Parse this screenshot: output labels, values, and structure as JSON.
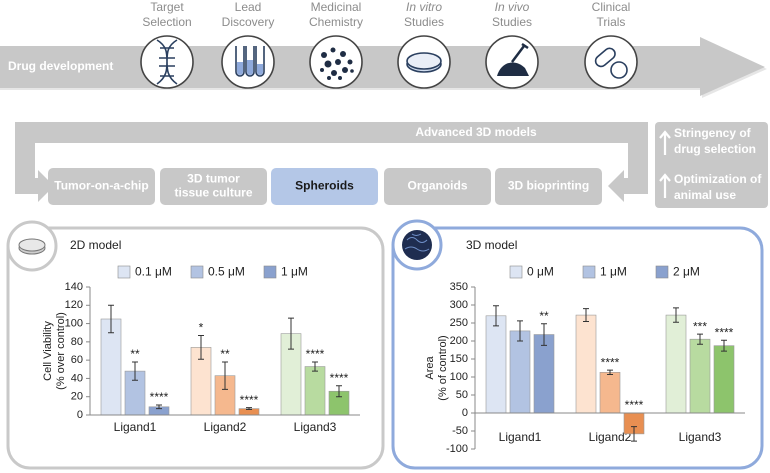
{
  "diagram": {
    "banner_label": "Drug development",
    "stages": [
      {
        "line1": "Target",
        "line2": "Selection"
      },
      {
        "line1": "Lead",
        "line2": "Discovery"
      },
      {
        "line1": "Medicinal",
        "line2": "Chemistry"
      },
      {
        "line1": "In vitro",
        "line2": "Studies"
      },
      {
        "line1": "In vivo",
        "line2": "Studies"
      },
      {
        "line1": "Clinical",
        "line2": "Trials"
      }
    ],
    "advanced_label": "Advanced 3D models",
    "models": [
      [
        "Tumor-on-a-chip"
      ],
      [
        "3D tumor",
        "tissue culture"
      ],
      [
        "Spheroids"
      ],
      [
        "Organoids"
      ],
      [
        "3D bioprinting"
      ]
    ],
    "side_notes": [
      {
        "line1": "Stringency of",
        "line2": "drug selection"
      },
      {
        "line1": "Optimization of",
        "line2": "animal use"
      }
    ]
  },
  "chart_data": [
    {
      "type": "bar",
      "title": "2D model",
      "ylabel": [
        "Cell Viability",
        "(% over control)"
      ],
      "categories": [
        "Ligand1",
        "Ligand2",
        "Ligand3"
      ],
      "series": [
        {
          "name": "0.1 μM",
          "color": "#dde5f3",
          "colors": [
            "#dde5f3",
            "#fde3d0",
            "#e1efd7"
          ],
          "values": [
            105,
            74,
            89
          ],
          "errors": [
            15,
            13,
            17
          ],
          "annotations": [
            null,
            "*",
            null
          ]
        },
        {
          "name": "0.5 μM",
          "color": "#b2c3e2",
          "colors": [
            "#b2c3e2",
            "#f5b88e",
            "#b8dba0"
          ],
          "values": [
            48,
            43,
            53
          ],
          "errors": [
            10,
            15,
            5
          ],
          "annotations": [
            "**",
            "**",
            "****"
          ]
        },
        {
          "name": "1 μM",
          "color": "#8aa1ce",
          "colors": [
            "#8aa1ce",
            "#e88f52",
            "#8dc46c"
          ],
          "values": [
            9,
            7,
            26
          ],
          "errors": [
            2,
            1,
            6
          ],
          "annotations": [
            "****",
            "****",
            "****"
          ]
        }
      ],
      "ylim": [
        0,
        140
      ],
      "yticks": [
        0,
        20,
        40,
        60,
        80,
        100,
        120,
        140
      ],
      "grid": false
    },
    {
      "type": "bar",
      "title": "3D model",
      "ylabel": [
        "Area",
        "(% of control)"
      ],
      "categories": [
        "Ligand1",
        "Ligand2",
        "Ligand3"
      ],
      "series": [
        {
          "name": "0 μM",
          "color": "#dde5f3",
          "colors": [
            "#dde5f3",
            "#fde3d0",
            "#e1efd7"
          ],
          "values": [
            270,
            272,
            272
          ],
          "errors": [
            28,
            18,
            20
          ],
          "annotations": [
            null,
            null,
            null
          ]
        },
        {
          "name": "1 μM",
          "color": "#b2c3e2",
          "colors": [
            "#b2c3e2",
            "#f5b88e",
            "#b8dba0"
          ],
          "values": [
            228,
            113,
            205
          ],
          "errors": [
            28,
            6,
            14
          ],
          "annotations": [
            null,
            "****",
            "***"
          ]
        },
        {
          "name": "2 μM",
          "color": "#8aa1ce",
          "colors": [
            "#8aa1ce",
            "#e88f52",
            "#8dc46c"
          ],
          "values": [
            218,
            -58,
            187
          ],
          "errors": [
            30,
            20,
            15
          ],
          "annotations": [
            "**",
            "****",
            "****"
          ]
        }
      ],
      "ylim": [
        -100,
        350
      ],
      "yticks": [
        -100,
        -50,
        0,
        50,
        100,
        150,
        200,
        250,
        300,
        350
      ],
      "grid": false
    }
  ]
}
